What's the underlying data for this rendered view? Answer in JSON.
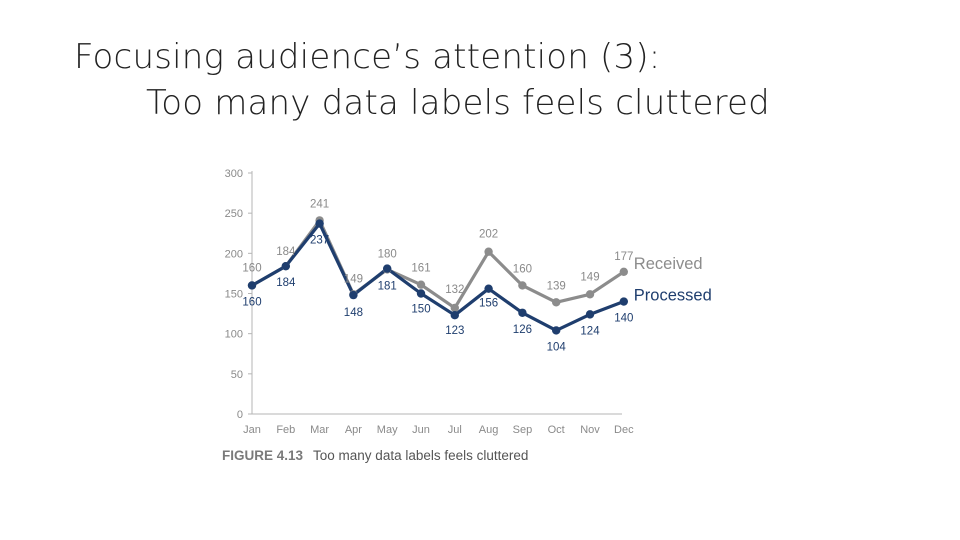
{
  "slide": {
    "title_line1": "Focusing audience’s attention (3):",
    "title_line2": "Too many data labels feels cluttered"
  },
  "caption": {
    "figure": "FIGURE 4.13",
    "text": "Too many data labels feels cluttered"
  },
  "chart_data": {
    "type": "line",
    "title": "",
    "xlabel": "",
    "ylabel": "",
    "ylim": [
      0,
      300
    ],
    "yticks": [
      0,
      50,
      100,
      150,
      200,
      250,
      300
    ],
    "categories": [
      "Jan",
      "Feb",
      "Mar",
      "Apr",
      "May",
      "Jun",
      "Jul",
      "Aug",
      "Sep",
      "Oct",
      "Nov",
      "Dec"
    ],
    "grid": false,
    "legend": "right, inline at line ends",
    "series": [
      {
        "name": "Received",
        "color": "#8c8c8c",
        "label_color": "#8a8a8a",
        "values": [
          160,
          184,
          241,
          149,
          180,
          161,
          132,
          202,
          160,
          139,
          149,
          177
        ]
      },
      {
        "name": "Processed",
        "color": "#1f3e6e",
        "label_color": "#1f3e6e",
        "values": [
          160,
          184,
          237,
          148,
          181,
          150,
          123,
          156,
          126,
          104,
          124,
          140
        ]
      }
    ]
  }
}
